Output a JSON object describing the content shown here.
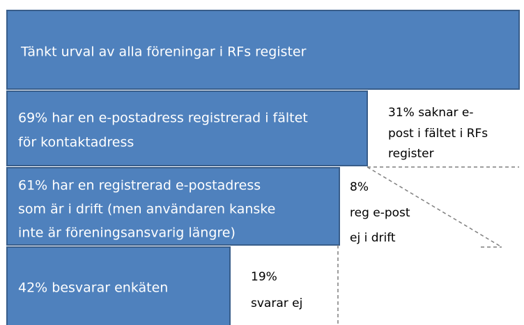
{
  "blocks": [
    {
      "lines": [
        "Tänkt urval av alla föreningar i RFs register"
      ]
    },
    {
      "lines": [
        "69% har en e-postadress registrerad i fältet",
        "för kontaktadress"
      ],
      "rest": [
        "31% saknar e-",
        "post i fältet i RFs",
        "register"
      ]
    },
    {
      "lines": [
        "61% har en registrerad e-postadress",
        "som är i drift (men användaren kanske",
        "inte är föreningsansvarig längre)"
      ],
      "rest": [
        "8%",
        "reg e-post",
        "ej i drift"
      ]
    },
    {
      "lines": [
        "42% besvarar enkäten"
      ],
      "rest": [
        "19%",
        "svarar ej"
      ]
    }
  ]
}
